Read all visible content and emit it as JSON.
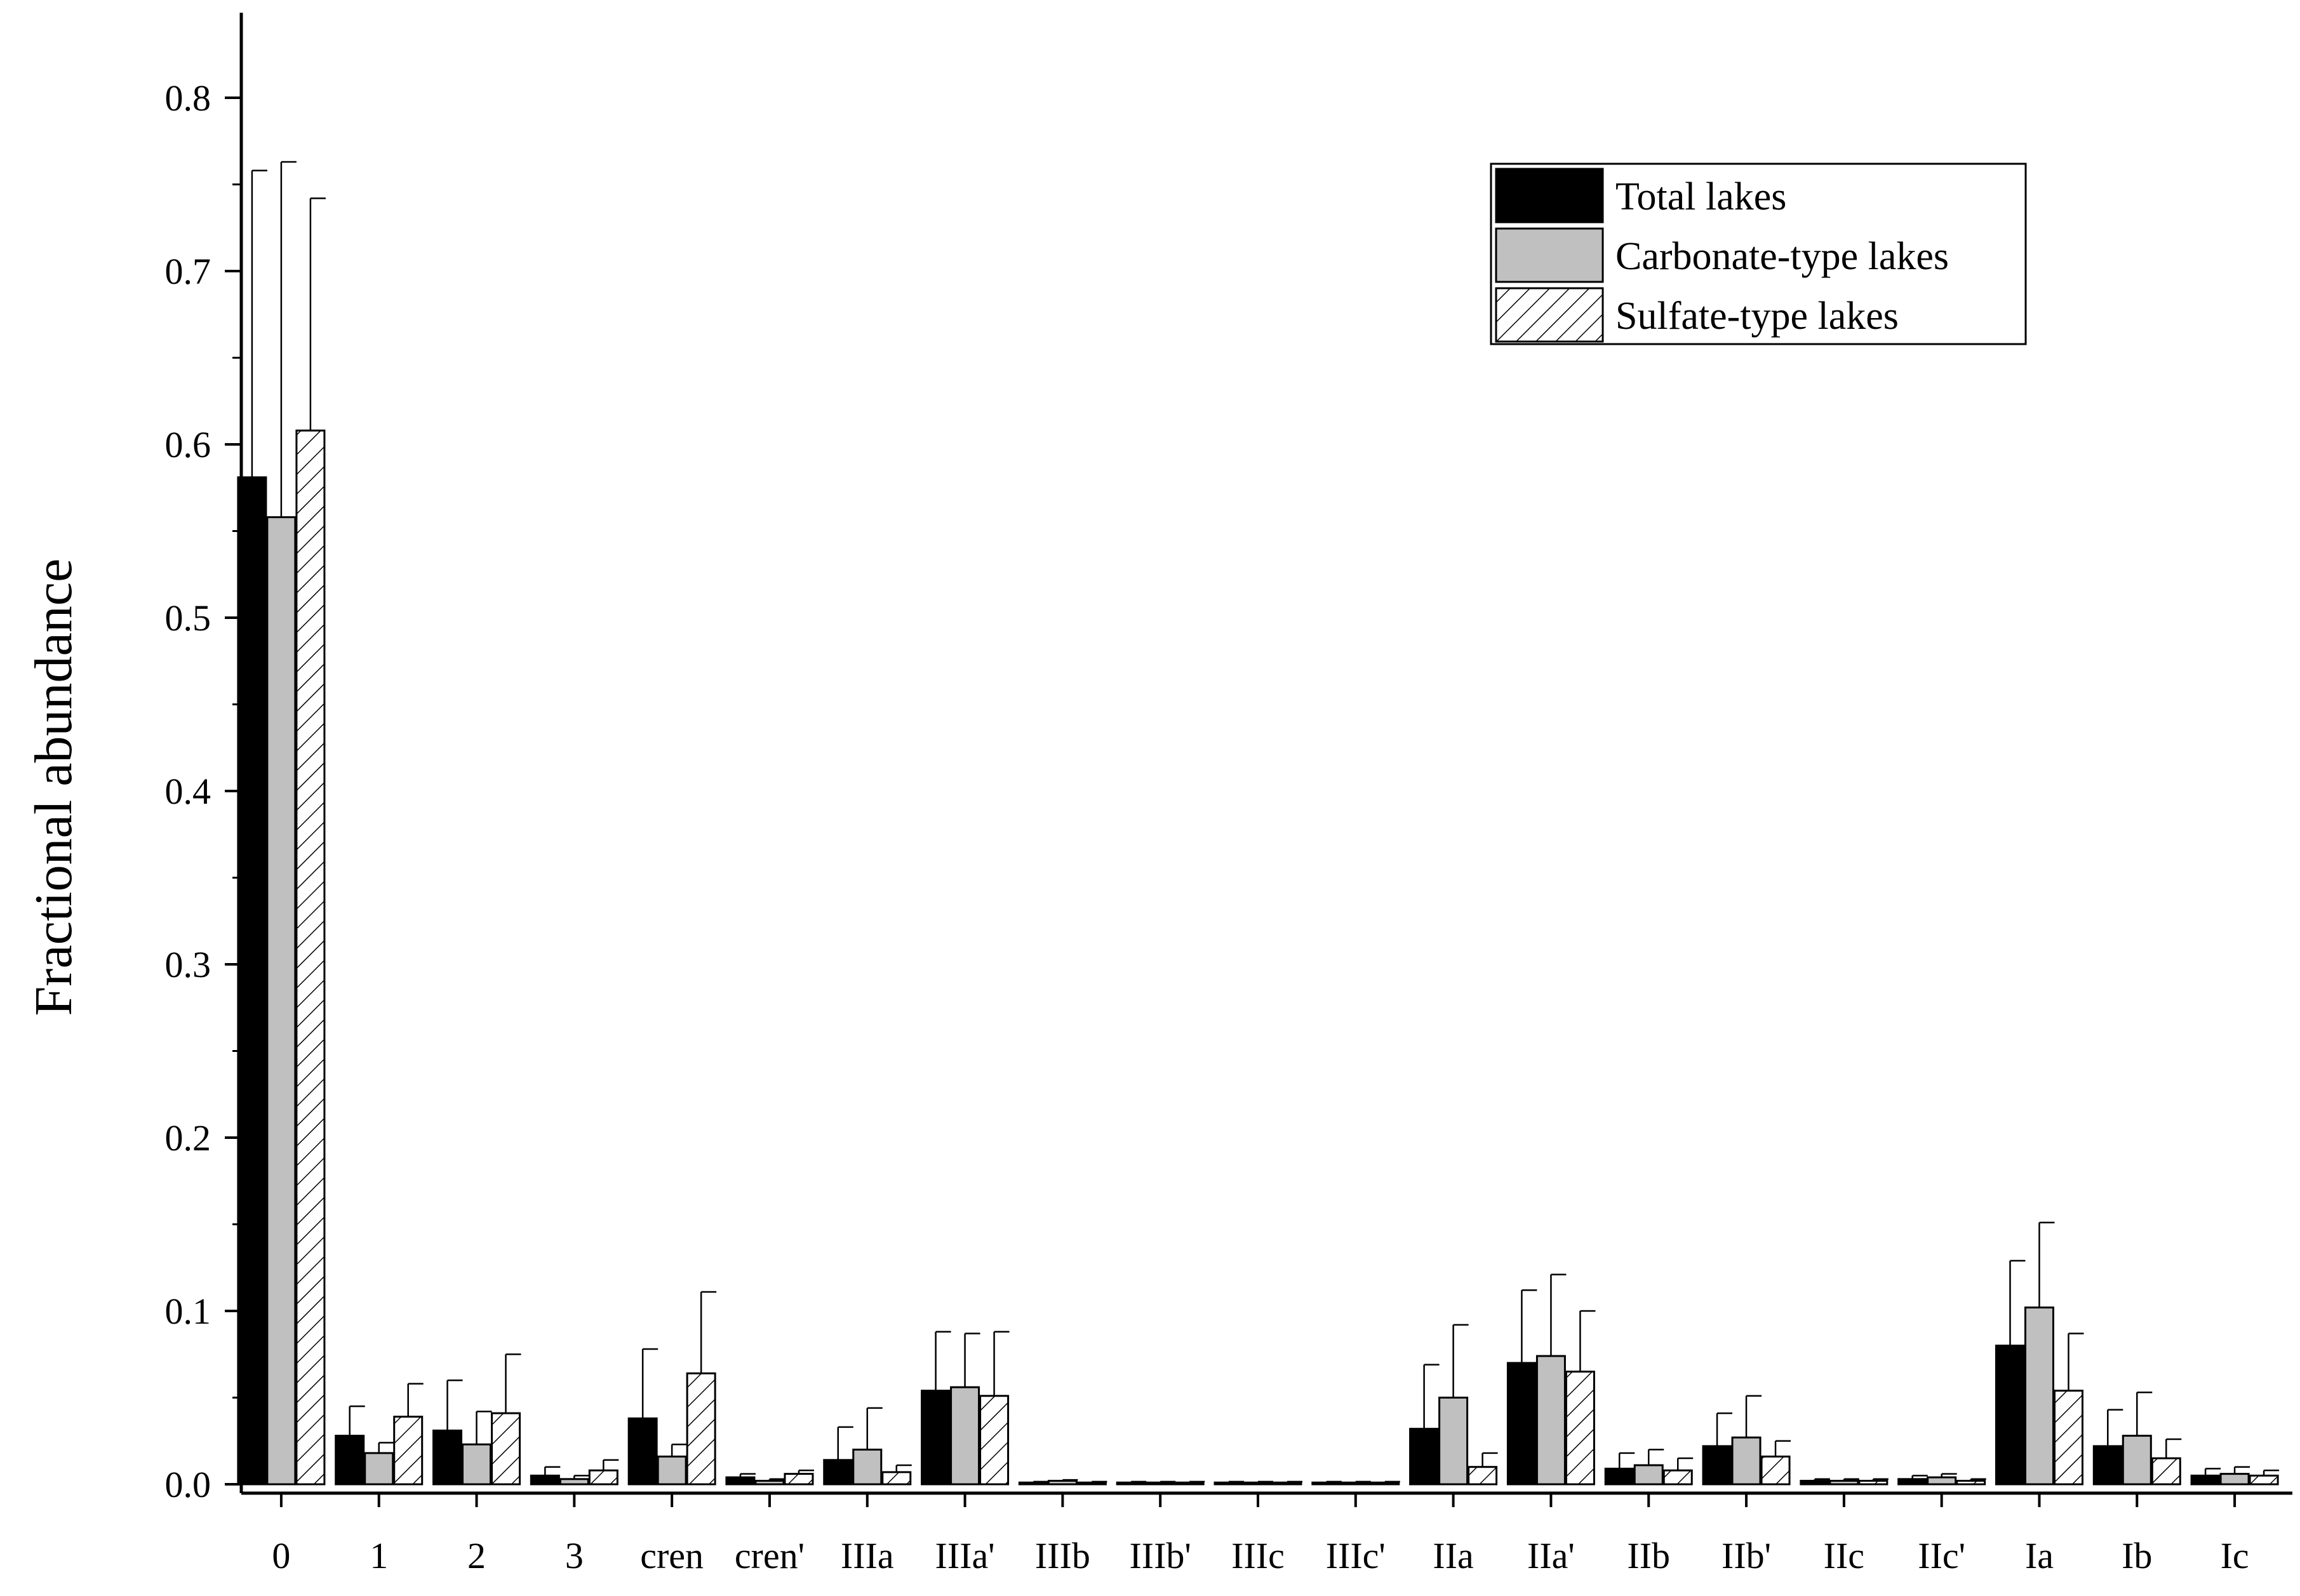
{
  "chart_data": {
    "type": "bar",
    "ylabel": "Fractional abundance",
    "xlabel": "",
    "ylim": [
      -0.005,
      0.85
    ],
    "yticks": [
      0.0,
      0.1,
      0.2,
      0.3,
      0.4,
      0.5,
      0.6,
      0.7,
      0.8
    ],
    "ytick_labels": [
      "0.0",
      "0.1",
      "0.2",
      "0.3",
      "0.4",
      "0.5",
      "0.6",
      "0.7",
      "0.8"
    ],
    "categories": [
      "0",
      "1",
      "2",
      "3",
      "cren",
      "cren'",
      "IIIa",
      "IIIa'",
      "IIIb",
      "IIIb'",
      "IIIc",
      "IIIc'",
      "IIa",
      "IIa'",
      "IIb",
      "IIb'",
      "IIc",
      "IIc'",
      "Ia",
      "Ib",
      "Ic"
    ],
    "legend_position": "top-right",
    "grid": false,
    "series": [
      {
        "name": "Total lakes",
        "fill": "#000000",
        "pattern": "solid",
        "values": [
          0.581,
          0.028,
          0.031,
          0.005,
          0.038,
          0.004,
          0.014,
          0.054,
          0.001,
          0.001,
          0.001,
          0.001,
          0.032,
          0.07,
          0.009,
          0.022,
          0.002,
          0.003,
          0.08,
          0.022,
          0.005
        ],
        "errors": [
          0.177,
          0.017,
          0.029,
          0.005,
          0.04,
          0.002,
          0.019,
          0.034,
          0.0005,
          0.0005,
          0.0005,
          0.0005,
          0.037,
          0.042,
          0.009,
          0.019,
          0.001,
          0.002,
          0.049,
          0.021,
          0.004
        ]
      },
      {
        "name": "Carbonate-type lakes",
        "fill": "#c0c0c0",
        "pattern": "solid",
        "values": [
          0.558,
          0.018,
          0.023,
          0.003,
          0.016,
          0.002,
          0.02,
          0.056,
          0.002,
          0.001,
          0.001,
          0.001,
          0.05,
          0.074,
          0.011,
          0.027,
          0.002,
          0.004,
          0.102,
          0.028,
          0.006
        ],
        "errors": [
          0.205,
          0.006,
          0.019,
          0.002,
          0.007,
          0.001,
          0.024,
          0.031,
          0.0005,
          0.0005,
          0.0005,
          0.0005,
          0.042,
          0.047,
          0.009,
          0.024,
          0.001,
          0.002,
          0.049,
          0.025,
          0.004
        ]
      },
      {
        "name": "Sulfate-type lakes",
        "fill": "#ffffff",
        "pattern": "hatched",
        "values": [
          0.608,
          0.039,
          0.041,
          0.008,
          0.064,
          0.006,
          0.007,
          0.051,
          0.001,
          0.001,
          0.001,
          0.001,
          0.01,
          0.065,
          0.008,
          0.016,
          0.002,
          0.002,
          0.054,
          0.015,
          0.005
        ],
        "errors": [
          0.134,
          0.019,
          0.034,
          0.006,
          0.047,
          0.002,
          0.004,
          0.037,
          0.0005,
          0.0005,
          0.0005,
          0.0005,
          0.008,
          0.035,
          0.007,
          0.009,
          0.001,
          0.001,
          0.033,
          0.011,
          0.003
        ]
      }
    ]
  }
}
